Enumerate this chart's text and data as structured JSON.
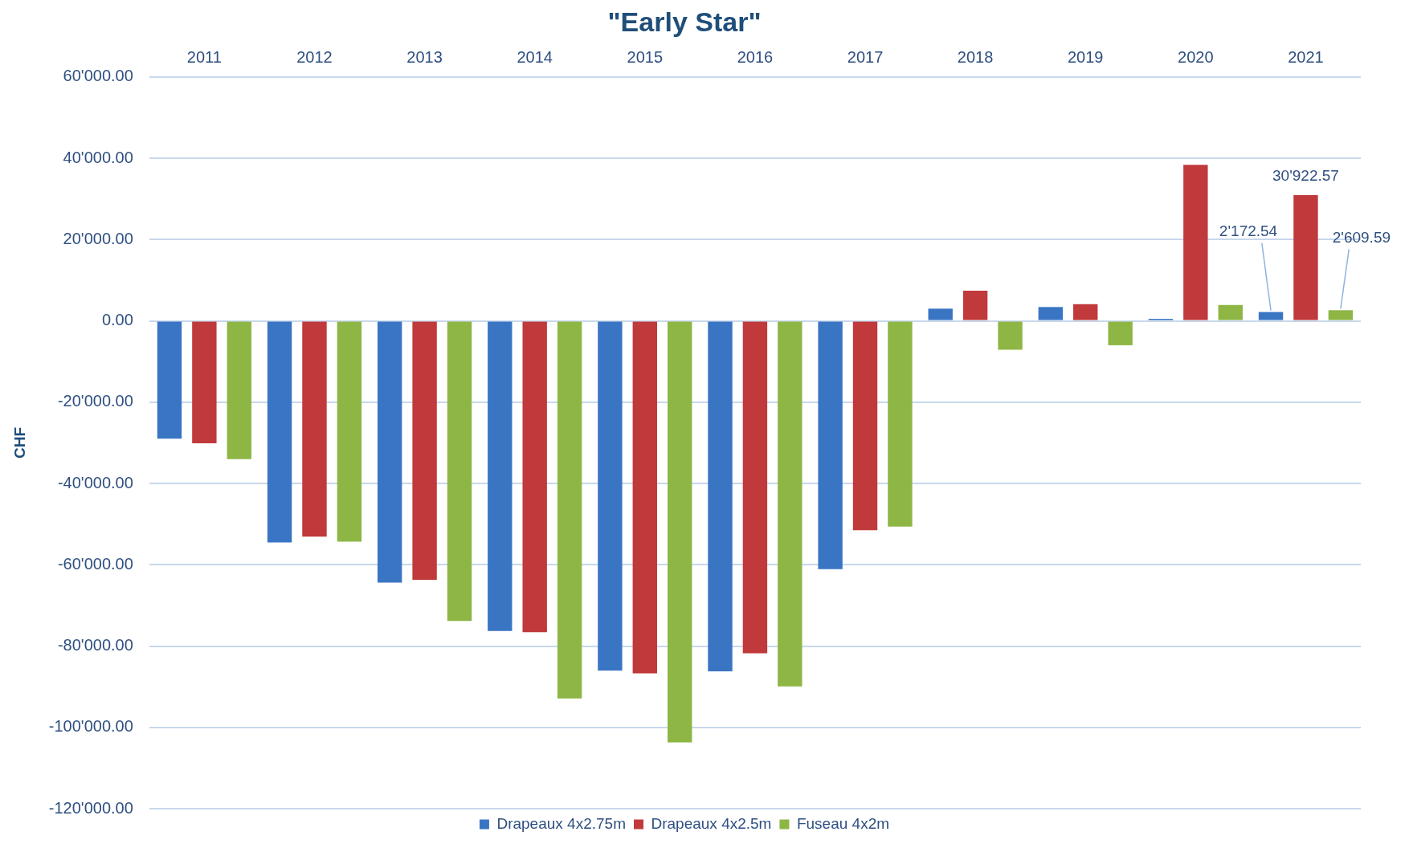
{
  "chart_data": {
    "type": "bar",
    "title": "\"Early Star\"",
    "ylabel": "CHF",
    "categories": [
      "2011",
      "2012",
      "2013",
      "2014",
      "2015",
      "2016",
      "2017",
      "2018",
      "2019",
      "2020",
      "2021"
    ],
    "series": [
      {
        "name": "Drapeaux 4x2.75m",
        "color": "#3a75c4",
        "values": [
          -29000,
          -54500,
          -64400,
          -76300,
          -86000,
          -86200,
          -61100,
          3000,
          3400,
          500,
          2172.54
        ],
        "value_labels": [
          null,
          null,
          null,
          null,
          null,
          null,
          null,
          null,
          null,
          null,
          "2'172.54"
        ]
      },
      {
        "name": "Drapeaux 4x2.5m",
        "color": "#c0393b",
        "values": [
          -30100,
          -53100,
          -63700,
          -76600,
          -86700,
          -81800,
          -51500,
          7400,
          4100,
          38400,
          30922.57
        ],
        "value_labels": [
          null,
          null,
          null,
          null,
          null,
          null,
          null,
          null,
          null,
          null,
          "30'922.57"
        ]
      },
      {
        "name": "Fuseau 4x2m",
        "color": "#8db645",
        "values": [
          -34000,
          -54300,
          -73800,
          -92900,
          -103700,
          -89900,
          -50600,
          -7100,
          -6000,
          3900,
          2609.59
        ],
        "value_labels": [
          null,
          null,
          null,
          null,
          null,
          null,
          null,
          null,
          null,
          null,
          "2'609.59"
        ]
      }
    ],
    "ylim": [
      -120000,
      60000
    ],
    "yticks": [
      {
        "value": -120000,
        "label": "-120'000.00"
      },
      {
        "value": -100000,
        "label": "-100'000.00"
      },
      {
        "value": -80000,
        "label": "-80'000.00"
      },
      {
        "value": -60000,
        "label": "-60'000.00"
      },
      {
        "value": -40000,
        "label": "-40'000.00"
      },
      {
        "value": -20000,
        "label": "-20'000.00"
      },
      {
        "value": 0,
        "label": "0.00"
      },
      {
        "value": 20000,
        "label": "20'000.00"
      },
      {
        "value": 40000,
        "label": "40'000.00"
      },
      {
        "value": 60000,
        "label": "60'000.00"
      }
    ],
    "grid": "y",
    "legend": "bottom"
  }
}
